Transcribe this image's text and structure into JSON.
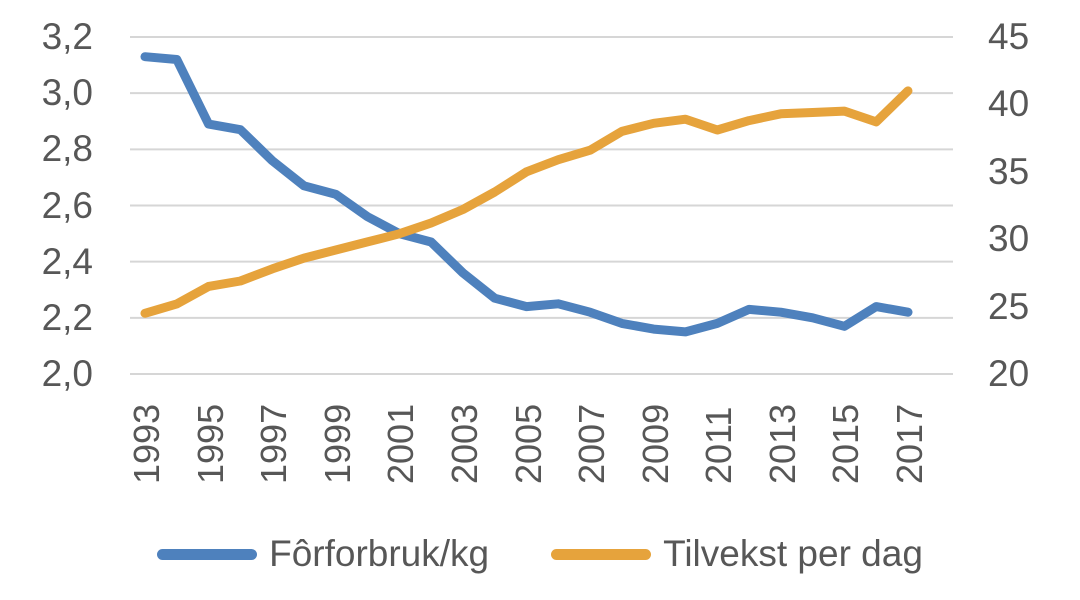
{
  "chart_data": {
    "type": "line",
    "title": "",
    "x": [
      1993,
      1994,
      1995,
      1996,
      1997,
      1998,
      1999,
      2000,
      2001,
      2002,
      2003,
      2004,
      2005,
      2006,
      2007,
      2008,
      2009,
      2010,
      2011,
      2012,
      2013,
      2014,
      2015,
      2016,
      2017
    ],
    "series": [
      {
        "name": "Fôrforbruk/kg",
        "axis": "left",
        "color": "#4E81BD",
        "values": [
          3.13,
          3.12,
          2.89,
          2.87,
          2.76,
          2.67,
          2.64,
          2.56,
          2.5,
          2.47,
          2.36,
          2.27,
          2.24,
          2.25,
          2.22,
          2.18,
          2.16,
          2.15,
          2.18,
          2.23,
          2.22,
          2.2,
          2.17,
          2.24,
          2.22
        ]
      },
      {
        "name": "Tilvekst per dag",
        "axis": "right",
        "color": "#E6A33C",
        "values": [
          24.5,
          25.2,
          26.5,
          26.9,
          27.8,
          28.6,
          29.2,
          29.8,
          30.4,
          31.2,
          32.2,
          33.5,
          35.0,
          35.9,
          36.6,
          38.0,
          38.6,
          38.9,
          38.1,
          38.8,
          39.3,
          39.4,
          39.5,
          38.7,
          41.0
        ]
      }
    ],
    "left_axis": {
      "min": 2.0,
      "max": 3.2,
      "tick_labels": [
        "3,2",
        "3,0",
        "2,8",
        "2,6",
        "2,4",
        "2,2",
        "2,0"
      ]
    },
    "right_axis": {
      "min": 20,
      "max": 45,
      "tick_labels": [
        "45",
        "40",
        "35",
        "30",
        "25",
        "20"
      ]
    },
    "x_tick_labels": [
      "1993",
      "1995",
      "1997",
      "1999",
      "2001",
      "2003",
      "2005",
      "2007",
      "2009",
      "2011",
      "2013",
      "2015",
      "2017"
    ],
    "grid": "horizontal",
    "gridline_color": "#D6D6D6",
    "text_color": "#575757",
    "legend_position": "bottom"
  }
}
